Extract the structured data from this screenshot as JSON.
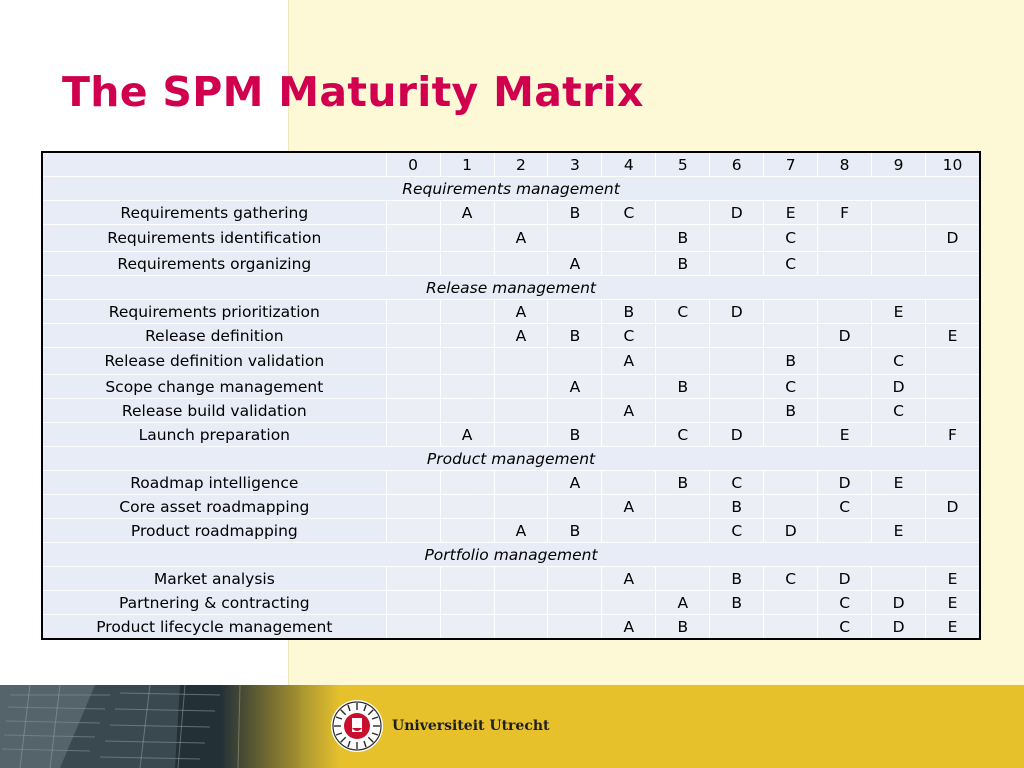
{
  "title": "The SPM Maturity Matrix",
  "columns": [
    "0",
    "1",
    "2",
    "3",
    "4",
    "5",
    "6",
    "7",
    "8",
    "9",
    "10"
  ],
  "groups": [
    {
      "name": "Requirements management",
      "rows": [
        {
          "label": "Requirements gathering",
          "cells": [
            "",
            "A",
            "",
            "B",
            "C",
            "",
            "D",
            "E",
            "F",
            "",
            ""
          ]
        },
        {
          "label": "Requirements identification",
          "cells": [
            "",
            "",
            "A",
            "",
            "",
            "B",
            "",
            "C",
            "",
            "",
            "D"
          ]
        },
        {
          "label": "Requirements organizing",
          "cells": [
            "",
            "",
            "",
            "A",
            "",
            "B",
            "",
            "C",
            "",
            "",
            ""
          ]
        }
      ]
    },
    {
      "name": "Release management",
      "rows": [
        {
          "label": "Requirements prioritization",
          "cells": [
            "",
            "",
            "A",
            "",
            "B",
            "C",
            "D",
            "",
            "",
            "E",
            ""
          ]
        },
        {
          "label": "Release definition",
          "cells": [
            "",
            "",
            "A",
            "B",
            "C",
            "",
            "",
            "",
            "D",
            "",
            "E"
          ]
        },
        {
          "label": "Release definition validation",
          "cells": [
            "",
            "",
            "",
            "",
            "A",
            "",
            "",
            "B",
            "",
            "C",
            ""
          ]
        },
        {
          "label": "Scope change management",
          "cells": [
            "",
            "",
            "",
            "A",
            "",
            "B",
            "",
            "C",
            "",
            "D",
            ""
          ]
        },
        {
          "label": "Release build validation",
          "cells": [
            "",
            "",
            "",
            "",
            "A",
            "",
            "",
            "B",
            "",
            "C",
            ""
          ]
        },
        {
          "label": "Launch preparation",
          "cells": [
            "",
            "A",
            "",
            "B",
            "",
            "C",
            "D",
            "",
            "E",
            "",
            "F"
          ]
        }
      ]
    },
    {
      "name": "Product management",
      "rows": [
        {
          "label": "Roadmap intelligence",
          "cells": [
            "",
            "",
            "",
            "A",
            "",
            "B",
            "C",
            "",
            "D",
            "E",
            ""
          ]
        },
        {
          "label": "Core asset roadmapping",
          "cells": [
            "",
            "",
            "",
            "",
            "A",
            "",
            "B",
            "",
            "C",
            "",
            "D"
          ]
        },
        {
          "label": "Product roadmapping",
          "cells": [
            "",
            "",
            "A",
            "B",
            "",
            "",
            "C",
            "D",
            "",
            "E",
            ""
          ]
        }
      ]
    },
    {
      "name": "Portfolio management",
      "rows": [
        {
          "label": "Market analysis",
          "cells": [
            "",
            "",
            "",
            "",
            "A",
            "",
            "B",
            "C",
            "D",
            "",
            "E"
          ]
        },
        {
          "label": "Partnering & contracting",
          "cells": [
            "",
            "",
            "",
            "",
            "",
            "A",
            "B",
            "",
            "C",
            "D",
            "E"
          ]
        },
        {
          "label": "Product lifecycle management",
          "cells": [
            "",
            "",
            "",
            "",
            "A",
            "B",
            "",
            "",
            "C",
            "D",
            "E"
          ]
        }
      ]
    }
  ],
  "footer": {
    "brand": "Universiteit Utrecht",
    "logo_icon": "university-seal-icon",
    "accent_color": "#e6c12c"
  },
  "colors": {
    "title": "#d0004f",
    "cream_panel": "#fdf9d6",
    "table_fill": "#e8ecf7"
  }
}
